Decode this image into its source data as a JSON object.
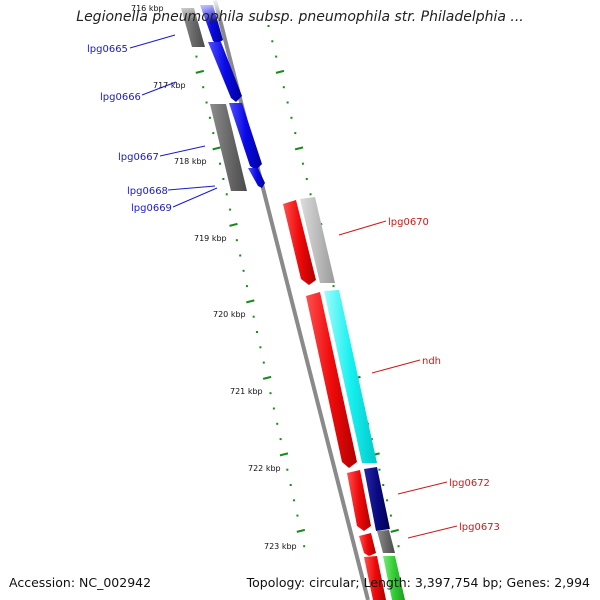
{
  "title": "Legionella pneumophila subsp. pneumophila str. Philadelphia ...",
  "footer": {
    "accession": "Accession: NC_002942",
    "stats": "Topology: circular; Length: 3,397,754 bp; Genes: 2,994"
  },
  "scale_labels": [
    "716 kbp",
    "717 kbp",
    "718 kbp",
    "719 kbp",
    "720 kbp",
    "721 kbp",
    "722 kbp",
    "723 kbp"
  ],
  "genes": [
    {
      "name": "lpg0665",
      "strand": "forward"
    },
    {
      "name": "lpg0666",
      "strand": "forward"
    },
    {
      "name": "lpg0667",
      "strand": "forward"
    },
    {
      "name": "lpg0668",
      "strand": "forward"
    },
    {
      "name": "lpg0669",
      "strand": "forward"
    },
    {
      "name": "lpg0670",
      "strand": "reverse"
    },
    {
      "name": "ndh",
      "strand": "reverse"
    },
    {
      "name": "lpg0672",
      "strand": "reverse"
    },
    {
      "name": "lpg0673",
      "strand": "reverse"
    }
  ],
  "colors": {
    "forward_label": "#1a1acc",
    "reverse_label": "#cc1a1a",
    "backbone": "#808080",
    "tick": "#1a8a1a",
    "blue": "#0a0ae6",
    "red": "#ee0a0a",
    "cyan": "#18f0f0",
    "navy": "#0a0a80",
    "gray": "#666666",
    "lightgray": "#b8b8b8",
    "green": "#33cc33"
  }
}
